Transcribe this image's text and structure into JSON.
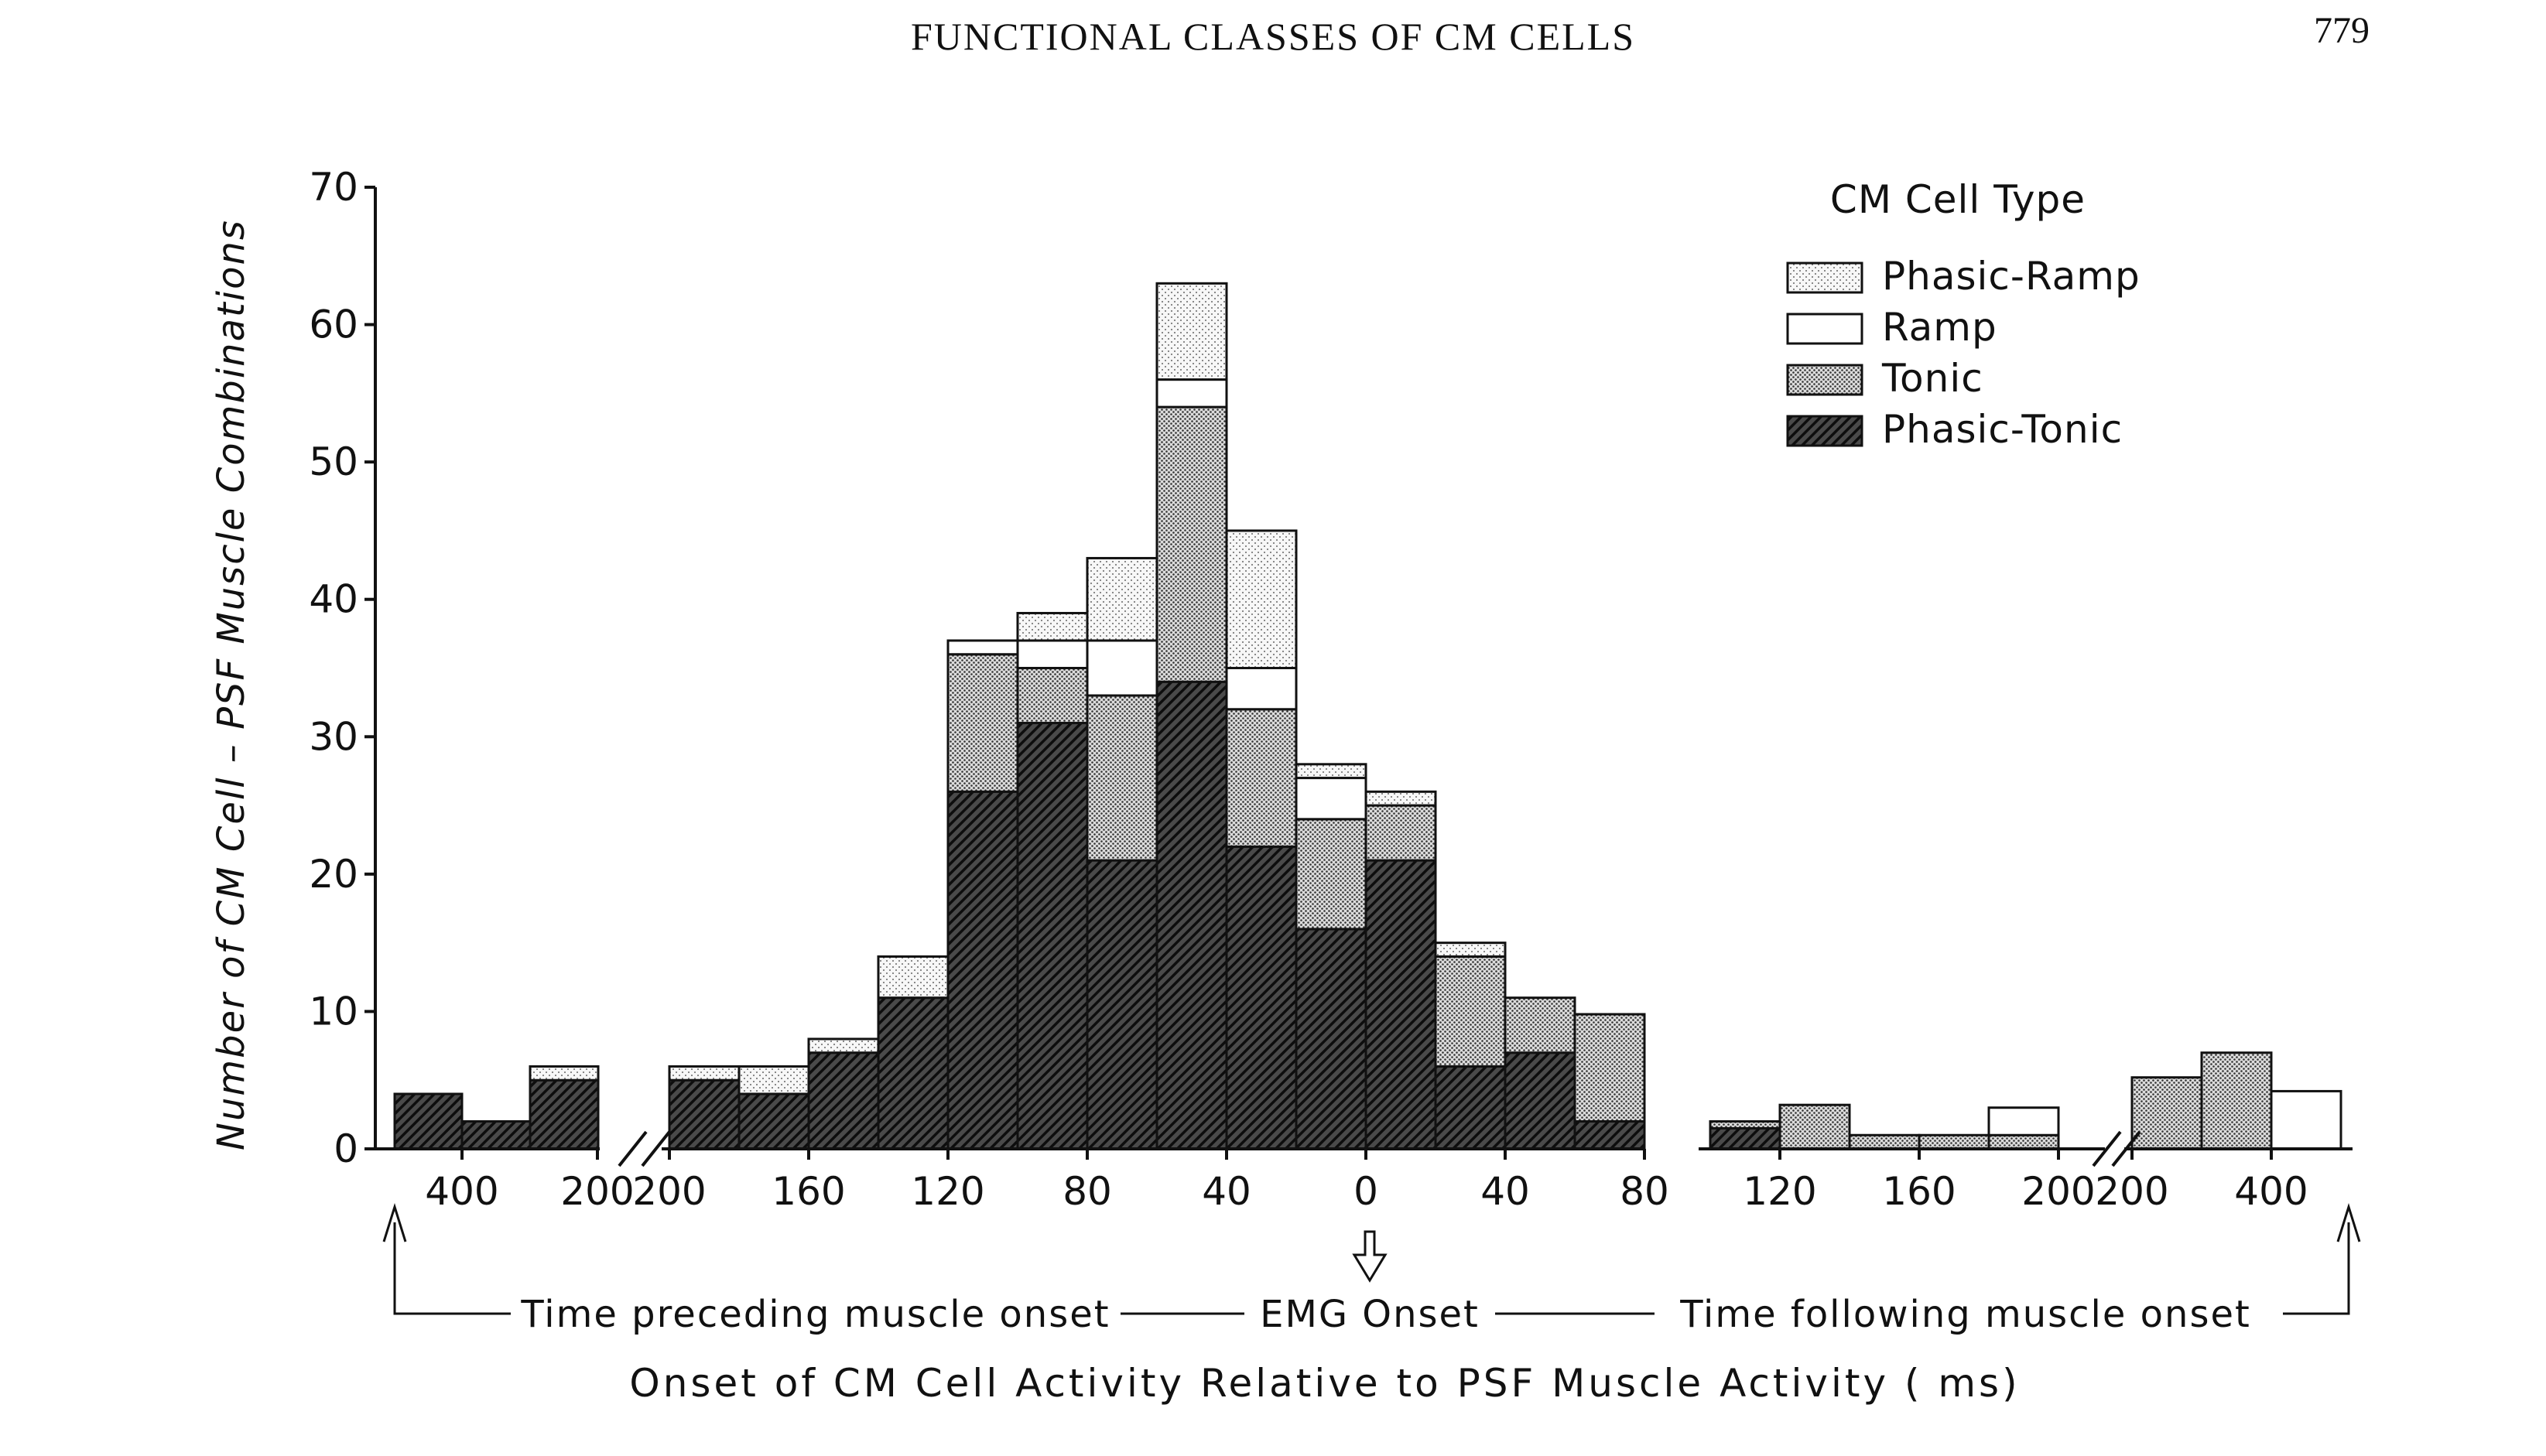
{
  "page": {
    "running_head": "FUNCTIONAL CLASSES OF CM CELLS",
    "page_number": "779"
  },
  "chart_data": {
    "type": "bar",
    "stacked": true,
    "ylabel": "Number of CM Cell – PSF Muscle Combinations",
    "xlabel": "Onset of CM Cell Activity Relative to PSF Muscle Activity ( ms)",
    "ylim": [
      0,
      70
    ],
    "yticks": [
      "0",
      "10",
      "20",
      "30",
      "40",
      "50",
      "60",
      "70"
    ],
    "x_ticks": [
      "400",
      "200",
      "200",
      "160",
      "120",
      "80",
      "40",
      "0",
      "40",
      "80",
      "120",
      "160",
      "200",
      "200",
      "400"
    ],
    "legend": {
      "title": "CM Cell Type",
      "placement": "top-right",
      "entries": [
        "Phasic-Ramp",
        "Ramp",
        "Tonic",
        "Phasic-Tonic"
      ]
    },
    "annotations": {
      "preceding": "Time preceding muscle onset",
      "emg_onset": "EMG Onset",
      "following": "Time following muscle onset"
    },
    "series": [
      {
        "name": "Phasic-Tonic",
        "values": [
          4,
          2,
          5,
          5,
          4,
          7,
          11,
          26,
          31,
          21,
          34,
          22,
          16,
          21,
          6,
          7,
          2,
          1.5,
          0,
          0,
          0,
          0,
          0,
          0,
          0
        ]
      },
      {
        "name": "Tonic",
        "values": [
          0,
          0,
          0,
          0,
          0,
          0,
          0,
          10,
          4,
          12,
          20,
          10,
          8,
          4,
          8,
          4,
          7.8,
          0.5,
          3.2,
          1,
          1,
          1,
          5.2,
          7,
          0
        ]
      },
      {
        "name": "Ramp",
        "values": [
          0,
          0,
          0,
          0,
          0,
          0,
          0,
          1,
          2,
          4,
          2,
          3,
          3,
          0,
          0,
          0,
          0,
          0,
          0,
          0,
          0,
          2,
          0,
          0,
          4.2
        ]
      },
      {
        "name": "Phasic-Ramp",
        "values": [
          0,
          0,
          1,
          1,
          2,
          1,
          3,
          0,
          2,
          6,
          7,
          10,
          1,
          1,
          1,
          0,
          0,
          0,
          0,
          0,
          0,
          0,
          0,
          0,
          0
        ]
      }
    ],
    "style": {
      "colors": {
        "phasic_tonic": "#3a3a3a",
        "tonic": "#b4b4b4",
        "ramp": "#ffffff",
        "phasic_ramp": "#ececec"
      }
    }
  }
}
